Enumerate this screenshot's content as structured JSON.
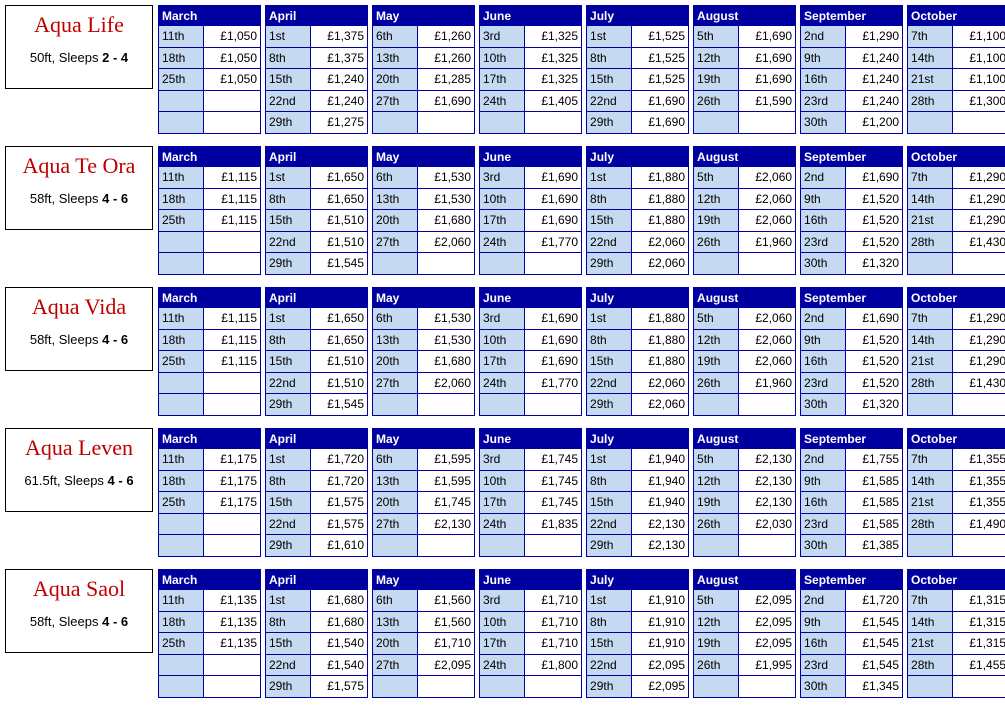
{
  "colors": {
    "header_bg": "#0000a0",
    "date_cell_bg": "#c5d9f1",
    "cell_border": "#0000a0",
    "boat_name_color": "#c00000",
    "info_border": "#000000"
  },
  "boats": [
    {
      "name": "Aqua Life",
      "spec_prefix": "50ft, Sleeps",
      "spec_bold": "2 - 4",
      "months": [
        {
          "label": "March",
          "rows": [
            [
              "11th",
              "£1,050"
            ],
            [
              "18th",
              "£1,050"
            ],
            [
              "25th",
              "£1,050"
            ],
            [
              "",
              ""
            ],
            [
              "",
              ""
            ]
          ]
        },
        {
          "label": "April",
          "rows": [
            [
              "1st",
              "£1,375"
            ],
            [
              "8th",
              "£1,375"
            ],
            [
              "15th",
              "£1,240"
            ],
            [
              "22nd",
              "£1,240"
            ],
            [
              "29th",
              "£1,275"
            ]
          ]
        },
        {
          "label": "May",
          "rows": [
            [
              "6th",
              "£1,260"
            ],
            [
              "13th",
              "£1,260"
            ],
            [
              "20th",
              "£1,285"
            ],
            [
              "27th",
              "£1,690"
            ],
            [
              "",
              ""
            ]
          ]
        },
        {
          "label": "June",
          "rows": [
            [
              "3rd",
              "£1,325"
            ],
            [
              "10th",
              "£1,325"
            ],
            [
              "17th",
              "£1,325"
            ],
            [
              "24th",
              "£1,405"
            ],
            [
              "",
              ""
            ]
          ]
        },
        {
          "label": "July",
          "rows": [
            [
              "1st",
              "£1,525"
            ],
            [
              "8th",
              "£1,525"
            ],
            [
              "15th",
              "£1,525"
            ],
            [
              "22nd",
              "£1,690"
            ],
            [
              "29th",
              "£1,690"
            ]
          ]
        },
        {
          "label": "August",
          "rows": [
            [
              "5th",
              "£1,690"
            ],
            [
              "12th",
              "£1,690"
            ],
            [
              "19th",
              "£1,690"
            ],
            [
              "26th",
              "£1,590"
            ],
            [
              "",
              ""
            ]
          ]
        },
        {
          "label": "September",
          "rows": [
            [
              "2nd",
              "£1,290"
            ],
            [
              "9th",
              "£1,240"
            ],
            [
              "16th",
              "£1,240"
            ],
            [
              "23rd",
              "£1,240"
            ],
            [
              "30th",
              "£1,200"
            ]
          ]
        },
        {
          "label": "October",
          "rows": [
            [
              "7th",
              "£1,100"
            ],
            [
              "14th",
              "£1,100"
            ],
            [
              "21st",
              "£1,100"
            ],
            [
              "28th",
              "£1,300"
            ],
            [
              "",
              ""
            ]
          ]
        }
      ]
    },
    {
      "name": "Aqua Te Ora",
      "spec_prefix": "58ft, Sleeps",
      "spec_bold": "4 - 6",
      "months": [
        {
          "label": "March",
          "rows": [
            [
              "11th",
              "£1,115"
            ],
            [
              "18th",
              "£1,115"
            ],
            [
              "25th",
              "£1,115"
            ],
            [
              "",
              ""
            ],
            [
              "",
              ""
            ]
          ]
        },
        {
          "label": "April",
          "rows": [
            [
              "1st",
              "£1,650"
            ],
            [
              "8th",
              "£1,650"
            ],
            [
              "15th",
              "£1,510"
            ],
            [
              "22nd",
              "£1,510"
            ],
            [
              "29th",
              "£1,545"
            ]
          ]
        },
        {
          "label": "May",
          "rows": [
            [
              "6th",
              "£1,530"
            ],
            [
              "13th",
              "£1,530"
            ],
            [
              "20th",
              "£1,680"
            ],
            [
              "27th",
              "£2,060"
            ],
            [
              "",
              ""
            ]
          ]
        },
        {
          "label": "June",
          "rows": [
            [
              "3rd",
              "£1,690"
            ],
            [
              "10th",
              "£1,690"
            ],
            [
              "17th",
              "£1,690"
            ],
            [
              "24th",
              "£1,770"
            ],
            [
              "",
              ""
            ]
          ]
        },
        {
          "label": "July",
          "rows": [
            [
              "1st",
              "£1,880"
            ],
            [
              "8th",
              "£1,880"
            ],
            [
              "15th",
              "£1,880"
            ],
            [
              "22nd",
              "£2,060"
            ],
            [
              "29th",
              "£2,060"
            ]
          ]
        },
        {
          "label": "August",
          "rows": [
            [
              "5th",
              "£2,060"
            ],
            [
              "12th",
              "£2,060"
            ],
            [
              "19th",
              "£2,060"
            ],
            [
              "26th",
              "£1,960"
            ],
            [
              "",
              ""
            ]
          ]
        },
        {
          "label": "September",
          "rows": [
            [
              "2nd",
              "£1,690"
            ],
            [
              "9th",
              "£1,520"
            ],
            [
              "16th",
              "£1,520"
            ],
            [
              "23rd",
              "£1,520"
            ],
            [
              "30th",
              "£1,320"
            ]
          ]
        },
        {
          "label": "October",
          "rows": [
            [
              "7th",
              "£1,290"
            ],
            [
              "14th",
              "£1,290"
            ],
            [
              "21st",
              "£1,290"
            ],
            [
              "28th",
              "£1,430"
            ],
            [
              "",
              ""
            ]
          ]
        }
      ]
    },
    {
      "name": "Aqua Vida",
      "spec_prefix": "58ft, Sleeps",
      "spec_bold": "4 - 6",
      "months": [
        {
          "label": "March",
          "rows": [
            [
              "11th",
              "£1,115"
            ],
            [
              "18th",
              "£1,115"
            ],
            [
              "25th",
              "£1,115"
            ],
            [
              "",
              ""
            ],
            [
              "",
              ""
            ]
          ]
        },
        {
          "label": "April",
          "rows": [
            [
              "1st",
              "£1,650"
            ],
            [
              "8th",
              "£1,650"
            ],
            [
              "15th",
              "£1,510"
            ],
            [
              "22nd",
              "£1,510"
            ],
            [
              "29th",
              "£1,545"
            ]
          ]
        },
        {
          "label": "May",
          "rows": [
            [
              "6th",
              "£1,530"
            ],
            [
              "13th",
              "£1,530"
            ],
            [
              "20th",
              "£1,680"
            ],
            [
              "27th",
              "£2,060"
            ],
            [
              "",
              ""
            ]
          ]
        },
        {
          "label": "June",
          "rows": [
            [
              "3rd",
              "£1,690"
            ],
            [
              "10th",
              "£1,690"
            ],
            [
              "17th",
              "£1,690"
            ],
            [
              "24th",
              "£1,770"
            ],
            [
              "",
              ""
            ]
          ]
        },
        {
          "label": "July",
          "rows": [
            [
              "1st",
              "£1,880"
            ],
            [
              "8th",
              "£1,880"
            ],
            [
              "15th",
              "£1,880"
            ],
            [
              "22nd",
              "£2,060"
            ],
            [
              "29th",
              "£2,060"
            ]
          ]
        },
        {
          "label": "August",
          "rows": [
            [
              "5th",
              "£2,060"
            ],
            [
              "12th",
              "£2,060"
            ],
            [
              "19th",
              "£2,060"
            ],
            [
              "26th",
              "£1,960"
            ],
            [
              "",
              ""
            ]
          ]
        },
        {
          "label": "September",
          "rows": [
            [
              "2nd",
              "£1,690"
            ],
            [
              "9th",
              "£1,520"
            ],
            [
              "16th",
              "£1,520"
            ],
            [
              "23rd",
              "£1,520"
            ],
            [
              "30th",
              "£1,320"
            ]
          ]
        },
        {
          "label": "October",
          "rows": [
            [
              "7th",
              "£1,290"
            ],
            [
              "14th",
              "£1,290"
            ],
            [
              "21st",
              "£1,290"
            ],
            [
              "28th",
              "£1,430"
            ],
            [
              "",
              ""
            ]
          ]
        }
      ]
    },
    {
      "name": "Aqua Leven",
      "spec_prefix": "61.5ft, Sleeps",
      "spec_bold": "4 - 6",
      "months": [
        {
          "label": "March",
          "rows": [
            [
              "11th",
              "£1,175"
            ],
            [
              "18th",
              "£1,175"
            ],
            [
              "25th",
              "£1,175"
            ],
            [
              "",
              ""
            ],
            [
              "",
              ""
            ]
          ]
        },
        {
          "label": "April",
          "rows": [
            [
              "1st",
              "£1,720"
            ],
            [
              "8th",
              "£1,720"
            ],
            [
              "15th",
              "£1,575"
            ],
            [
              "22nd",
              "£1,575"
            ],
            [
              "29th",
              "£1,610"
            ]
          ]
        },
        {
          "label": "May",
          "rows": [
            [
              "6th",
              "£1,595"
            ],
            [
              "13th",
              "£1,595"
            ],
            [
              "20th",
              "£1,745"
            ],
            [
              "27th",
              "£2,130"
            ],
            [
              "",
              ""
            ]
          ]
        },
        {
          "label": "June",
          "rows": [
            [
              "3rd",
              "£1,745"
            ],
            [
              "10th",
              "£1,745"
            ],
            [
              "17th",
              "£1,745"
            ],
            [
              "24th",
              "£1,835"
            ],
            [
              "",
              ""
            ]
          ]
        },
        {
          "label": "July",
          "rows": [
            [
              "1st",
              "£1,940"
            ],
            [
              "8th",
              "£1,940"
            ],
            [
              "15th",
              "£1,940"
            ],
            [
              "22nd",
              "£2,130"
            ],
            [
              "29th",
              "£2,130"
            ]
          ]
        },
        {
          "label": "August",
          "rows": [
            [
              "5th",
              "£2,130"
            ],
            [
              "12th",
              "£2,130"
            ],
            [
              "19th",
              "£2,130"
            ],
            [
              "26th",
              "£2,030"
            ],
            [
              "",
              ""
            ]
          ]
        },
        {
          "label": "September",
          "rows": [
            [
              "2nd",
              "£1,755"
            ],
            [
              "9th",
              "£1,585"
            ],
            [
              "16th",
              "£1,585"
            ],
            [
              "23rd",
              "£1,585"
            ],
            [
              "30th",
              "£1,385"
            ]
          ]
        },
        {
          "label": "October",
          "rows": [
            [
              "7th",
              "£1,355"
            ],
            [
              "14th",
              "£1,355"
            ],
            [
              "21st",
              "£1,355"
            ],
            [
              "28th",
              "£1,490"
            ],
            [
              "",
              ""
            ]
          ]
        }
      ]
    },
    {
      "name": "Aqua Saol",
      "spec_prefix": "58ft, Sleeps",
      "spec_bold": "4 - 6",
      "months": [
        {
          "label": "March",
          "rows": [
            [
              "11th",
              "£1,135"
            ],
            [
              "18th",
              "£1,135"
            ],
            [
              "25th",
              "£1,135"
            ],
            [
              "",
              ""
            ],
            [
              "",
              ""
            ]
          ]
        },
        {
          "label": "April",
          "rows": [
            [
              "1st",
              "£1,680"
            ],
            [
              "8th",
              "£1,680"
            ],
            [
              "15th",
              "£1,540"
            ],
            [
              "22nd",
              "£1,540"
            ],
            [
              "29th",
              "£1,575"
            ]
          ]
        },
        {
          "label": "May",
          "rows": [
            [
              "6th",
              "£1,560"
            ],
            [
              "13th",
              "£1,560"
            ],
            [
              "20th",
              "£1,710"
            ],
            [
              "27th",
              "£2,095"
            ],
            [
              "",
              ""
            ]
          ]
        },
        {
          "label": "June",
          "rows": [
            [
              "3rd",
              "£1,710"
            ],
            [
              "10th",
              "£1,710"
            ],
            [
              "17th",
              "£1,710"
            ],
            [
              "24th",
              "£1,800"
            ],
            [
              "",
              ""
            ]
          ]
        },
        {
          "label": "July",
          "rows": [
            [
              "1st",
              "£1,910"
            ],
            [
              "8th",
              "£1,910"
            ],
            [
              "15th",
              "£1,910"
            ],
            [
              "22nd",
              "£2,095"
            ],
            [
              "29th",
              "£2,095"
            ]
          ]
        },
        {
          "label": "August",
          "rows": [
            [
              "5th",
              "£2,095"
            ],
            [
              "12th",
              "£2,095"
            ],
            [
              "19th",
              "£2,095"
            ],
            [
              "26th",
              "£1,995"
            ],
            [
              "",
              ""
            ]
          ]
        },
        {
          "label": "September",
          "rows": [
            [
              "2nd",
              "£1,720"
            ],
            [
              "9th",
              "£1,545"
            ],
            [
              "16th",
              "£1,545"
            ],
            [
              "23rd",
              "£1,545"
            ],
            [
              "30th",
              "£1,345"
            ]
          ]
        },
        {
          "label": "October",
          "rows": [
            [
              "7th",
              "£1,315"
            ],
            [
              "14th",
              "£1,315"
            ],
            [
              "21st",
              "£1,315"
            ],
            [
              "28th",
              "£1,455"
            ],
            [
              "",
              ""
            ]
          ]
        }
      ]
    }
  ]
}
